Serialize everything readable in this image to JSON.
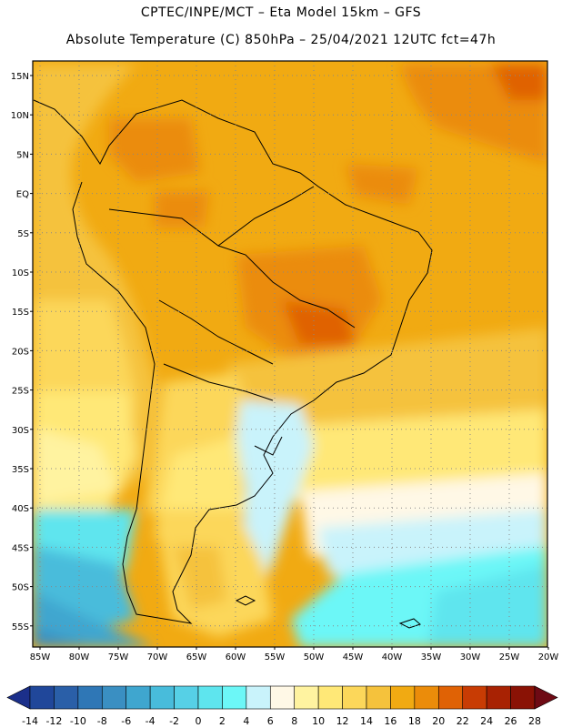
{
  "title_line1": "CPTEC/INPE/MCT –  Eta Model 15km – GFS",
  "title_line2": "Absolute Temperature (C) 850hPa – 25/04/2021 12UTC fct=47h",
  "lat_labels": [
    "15N",
    "10N",
    "5N",
    "EQ",
    "5S",
    "10S",
    "15S",
    "20S",
    "25S",
    "30S",
    "35S",
    "40S",
    "45S",
    "50S",
    "55S"
  ],
  "lon_labels": [
    "85W",
    "80W",
    "75W",
    "70W",
    "65W",
    "60W",
    "55W",
    "50W",
    "45W",
    "40W",
    "35W",
    "30W",
    "25W",
    "20W"
  ],
  "colorbar": {
    "ticks": [
      "-14",
      "-12",
      "-10",
      "-8",
      "-6",
      "-4",
      "-2",
      "0",
      "2",
      "4",
      "6",
      "8",
      "10",
      "12",
      "14",
      "16",
      "18",
      "20",
      "22",
      "24",
      "26",
      "28"
    ],
    "colors": [
      "#1b2f8a",
      "#20479a",
      "#2a5fa8",
      "#2f77b6",
      "#3a8fc2",
      "#3fa6cf",
      "#48bcdb",
      "#56d0e6",
      "#5ee5ee",
      "#6cf7f7",
      "#c9f3fb",
      "#fff8e6",
      "#fff3a0",
      "#ffe877",
      "#fcd75a",
      "#f5c23c",
      "#f1aa12",
      "#eb8c0a",
      "#e06205",
      "#c83c04",
      "#a82203",
      "#8a1205",
      "#6e0a14"
    ]
  }
}
